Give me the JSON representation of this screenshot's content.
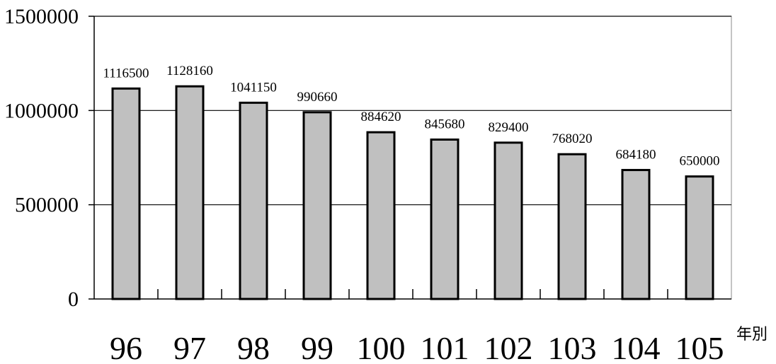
{
  "chart_data": {
    "type": "bar",
    "categories": [
      "96",
      "97",
      "98",
      "99",
      "100",
      "101",
      "102",
      "103",
      "104",
      "105"
    ],
    "values": [
      1116500,
      1128160,
      1041150,
      990660,
      884620,
      845680,
      829400,
      768020,
      684180,
      650000
    ],
    "data_labels": [
      "1116500",
      "1128160",
      "1041150",
      "990660",
      "884620",
      "845680",
      "829400",
      "768020",
      "684180",
      "650000"
    ],
    "y_ticks": [
      "0",
      "500000",
      "1000000",
      "1500000"
    ],
    "y_tick_values": [
      0,
      500000,
      1000000,
      1500000
    ],
    "ylim": [
      0,
      1500000
    ],
    "xlabel": "年別",
    "ylabel": "",
    "title": "",
    "grid": true,
    "colors": {
      "bar_fill": "#c0c0c0",
      "bar_stroke": "#000000",
      "grid": "#000000"
    }
  }
}
